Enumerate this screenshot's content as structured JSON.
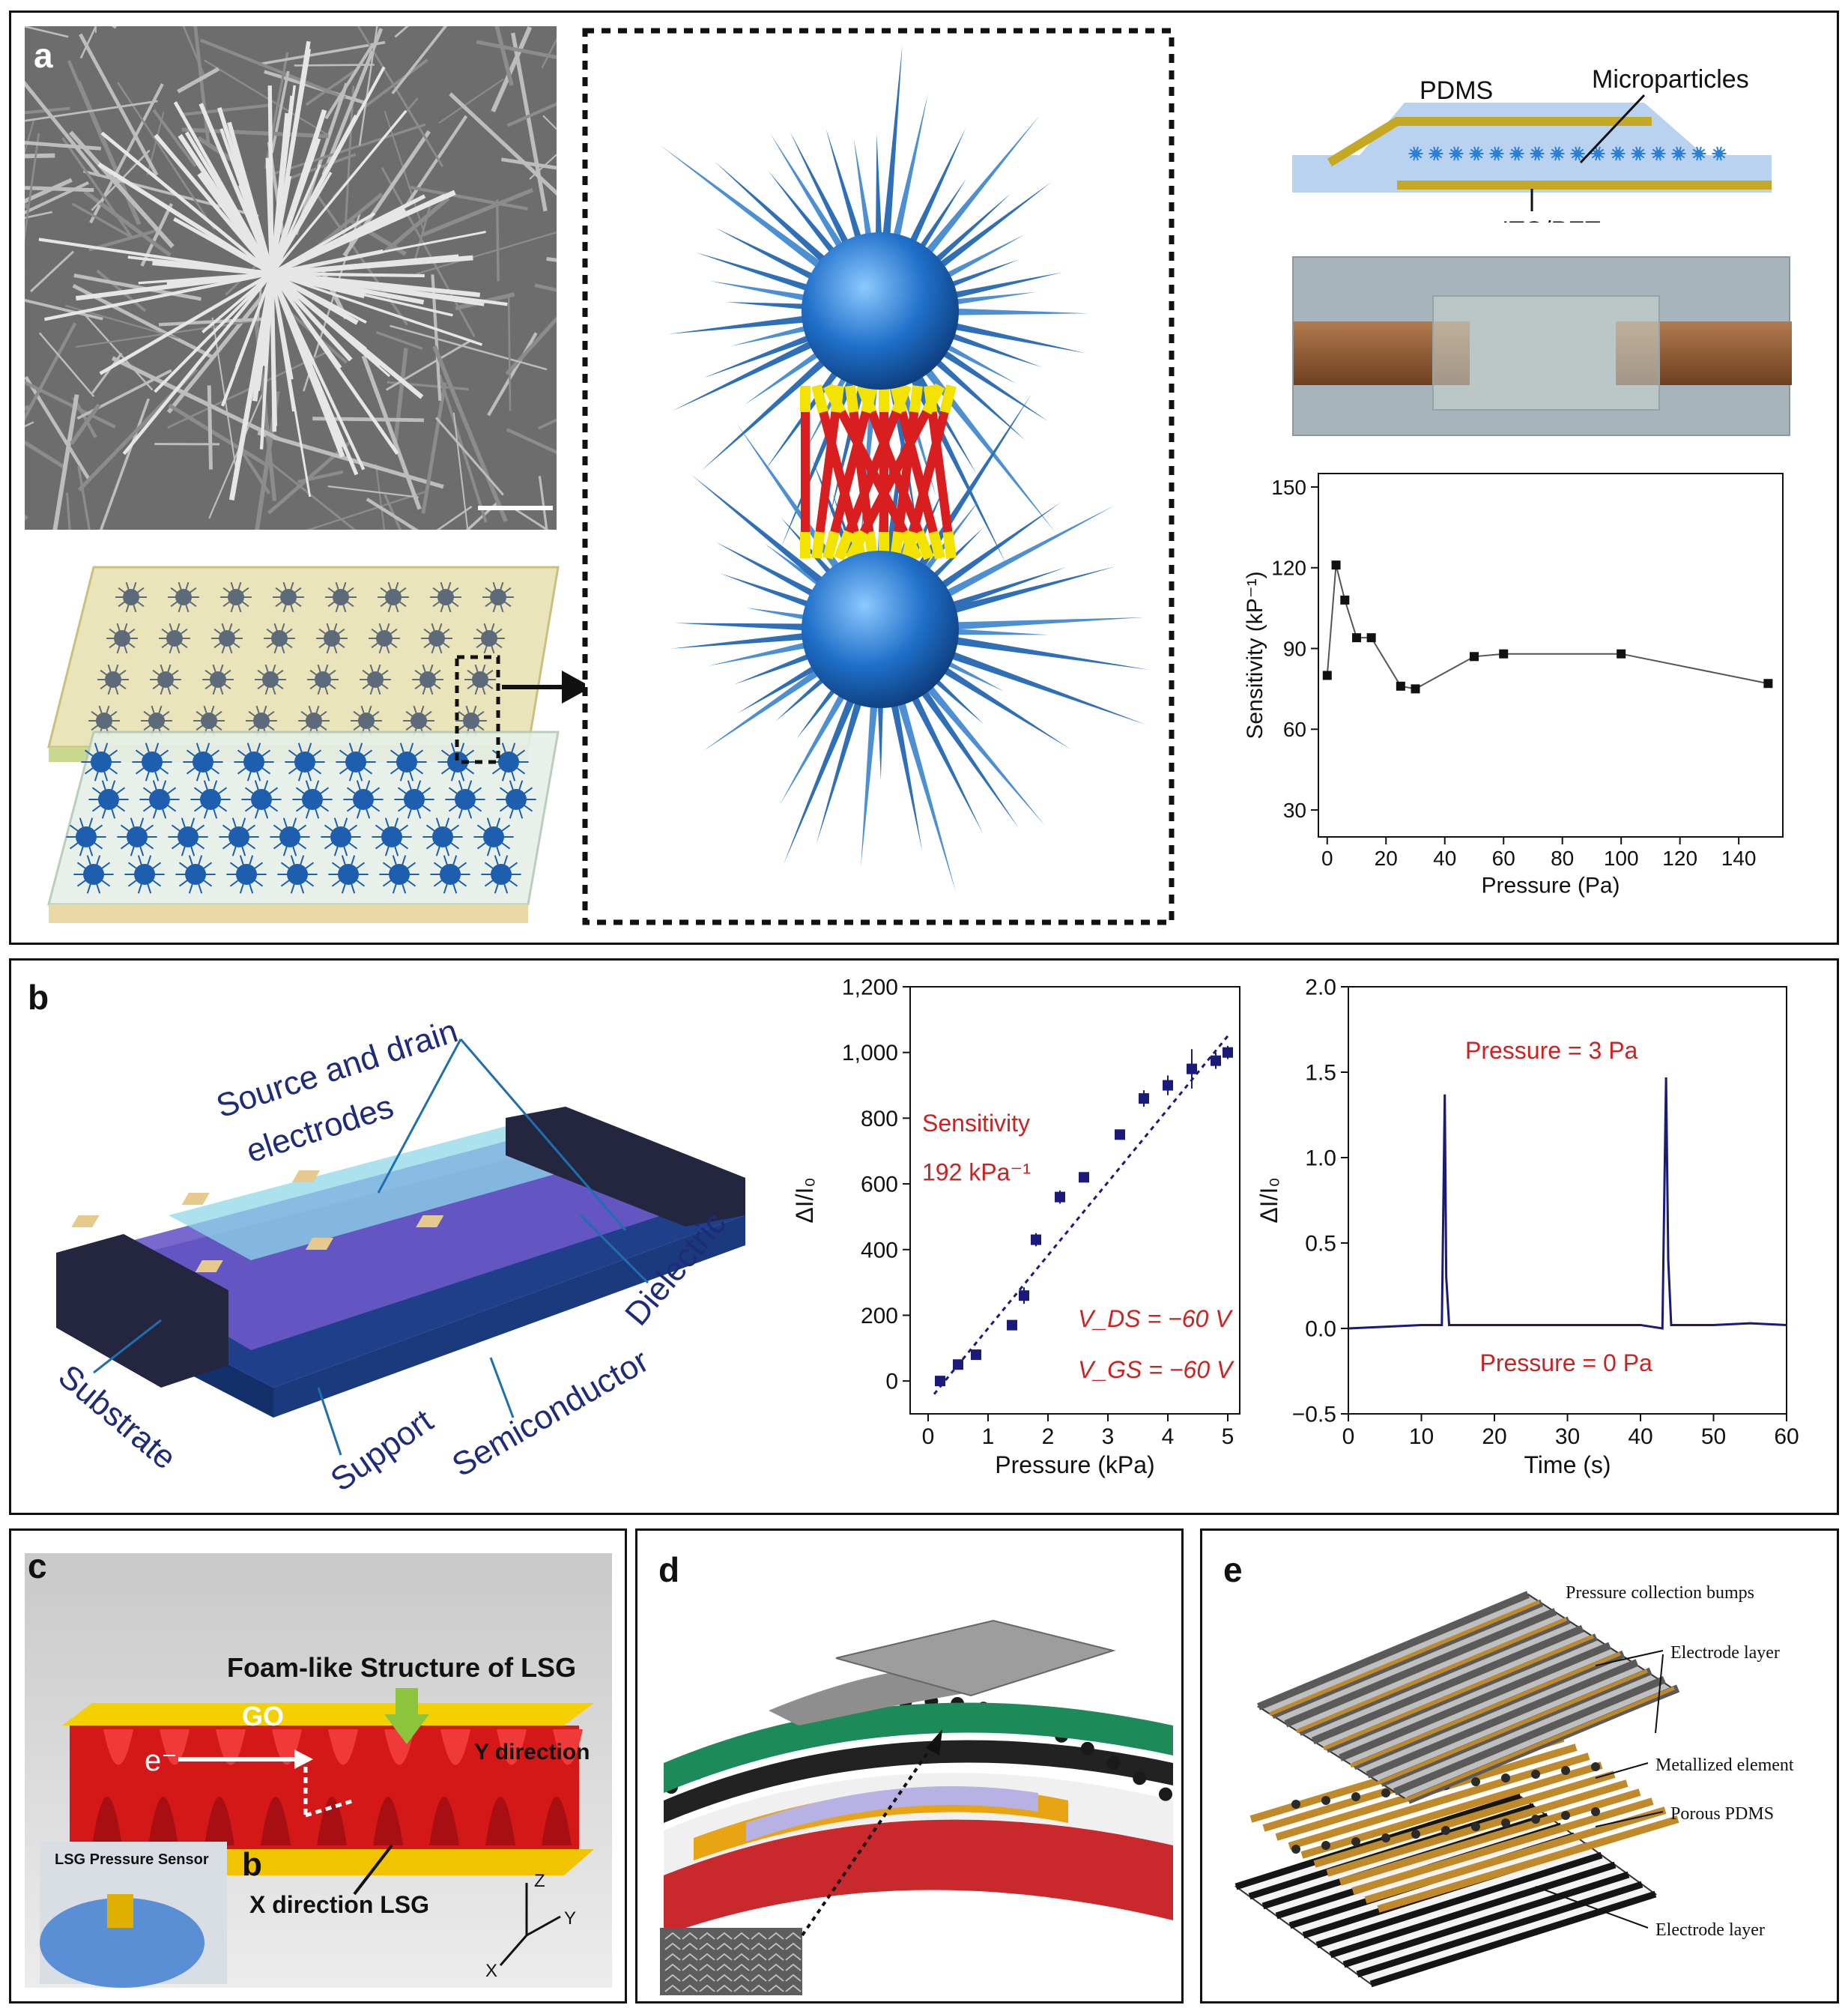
{
  "panels": {
    "a": {
      "label": "a"
    },
    "b": {
      "label": "b"
    },
    "c": {
      "label": "c"
    },
    "d": {
      "label": "d"
    },
    "e": {
      "label": "e"
    }
  },
  "panel_a": {
    "stack_labels": {
      "pdms": "PDMS",
      "microparticles": "Microparticles",
      "ito_pet": "ITO/PET"
    }
  },
  "panel_b": {
    "device_labels": {
      "source_drain": "Source and drain electrodes",
      "dielectric": "Dielectric",
      "substrate": "Substrate",
      "support": "Support",
      "semiconductor": "Semiconductor"
    },
    "annotations": {
      "sensitivity_line1": "Sensitivity",
      "sensitivity_line2": "192 kPa⁻¹",
      "vds": "V_DS = −60 V",
      "vgs": "V_GS = −60 V",
      "pressure_high": "Pressure = 3 Pa",
      "pressure_low": "Pressure = 0 Pa"
    }
  },
  "panel_c": {
    "title": "Foam-like Structure of LSG",
    "go": "GO",
    "electron": "e⁻",
    "y_direction": "Y direction",
    "x_direction": "X direction LSG",
    "inset": "LSG Pressure Sensor",
    "inset_letter": "b",
    "axes": {
      "z": "Z",
      "y": "Y",
      "x": "X"
    }
  },
  "panel_e": {
    "labels": {
      "bumps": "Pressure collection bumps",
      "electrode_top": "Electrode layer",
      "metallized": "Metallized element",
      "porous": "Porous PDMS",
      "electrode_bottom": "Electrode layer"
    }
  },
  "chart_data": [
    {
      "type": "line",
      "id": "sensitivity-vs-pressure",
      "xlabel": "Pressure (Pa)",
      "ylabel": "Sensitivity (kP⁻¹)",
      "xlim": [
        -3,
        155
      ],
      "ylim": [
        20,
        155
      ],
      "xticks": [
        0,
        20,
        40,
        60,
        80,
        100,
        120,
        140
      ],
      "yticks": [
        30,
        60,
        90,
        120,
        150
      ],
      "x": [
        0,
        3,
        6,
        10,
        15,
        25,
        30,
        50,
        60,
        100,
        150
      ],
      "y": [
        80,
        121,
        108,
        94,
        94,
        76,
        75,
        87,
        88,
        88,
        77
      ],
      "colors": {
        "line": "#555555",
        "marker": "#111111"
      }
    },
    {
      "type": "scatter",
      "id": "current-change-vs-pressure",
      "xlabel": "Pressure (kPa)",
      "ylabel": "ΔI/I₀",
      "xlim": [
        -0.3,
        5.2
      ],
      "ylim": [
        -100,
        1200
      ],
      "xticks": [
        0,
        1,
        2,
        3,
        4,
        5
      ],
      "yticks": [
        0,
        200,
        400,
        600,
        800,
        1000,
        1200
      ],
      "ytick_labels": [
        "0",
        "200",
        "400",
        "600",
        "800",
        "1,000",
        "1,200"
      ],
      "x": [
        0.2,
        0.5,
        0.8,
        1.4,
        1.6,
        1.8,
        2.2,
        2.6,
        3.2,
        3.6,
        4.0,
        4.4,
        4.8,
        5.0
      ],
      "y": [
        0,
        50,
        80,
        170,
        260,
        430,
        560,
        620,
        750,
        860,
        900,
        950,
        975,
        1000
      ],
      "err": [
        0,
        0,
        0,
        0,
        25,
        20,
        20,
        0,
        15,
        25,
        30,
        60,
        25,
        20
      ],
      "fit": {
        "x": [
          0.1,
          5.0
        ],
        "y": [
          -40,
          1050
        ]
      },
      "colors": {
        "marker": "#1a1a7a",
        "fit": "#1a1a7a",
        "annotation": "#d02020"
      }
    },
    {
      "type": "line",
      "id": "current-change-vs-time",
      "xlabel": "Time (s)",
      "ylabel": "ΔI/I₀",
      "xlim": [
        0,
        60
      ],
      "ylim": [
        -0.5,
        2.0
      ],
      "xticks": [
        0,
        10,
        20,
        30,
        40,
        50,
        60
      ],
      "yticks": [
        -0.5,
        0.0,
        0.5,
        1.0,
        1.5,
        2.0
      ],
      "ytick_labels": [
        "−0.5",
        "0.0",
        "0.5",
        "1.0",
        "1.5",
        "2.0"
      ],
      "x": [
        0,
        5,
        10,
        12.8,
        13.0,
        13.2,
        13.4,
        13.8,
        20,
        30,
        40,
        43.0,
        43.3,
        43.5,
        43.8,
        44.2,
        50,
        55,
        60
      ],
      "y": [
        0.0,
        0.01,
        0.02,
        0.02,
        0.7,
        1.37,
        0.3,
        0.02,
        0.02,
        0.02,
        0.02,
        0.0,
        0.9,
        1.47,
        0.4,
        0.02,
        0.02,
        0.03,
        0.02
      ],
      "colors": {
        "line": "#1a1a7a",
        "annotation": "#d02020"
      }
    }
  ]
}
